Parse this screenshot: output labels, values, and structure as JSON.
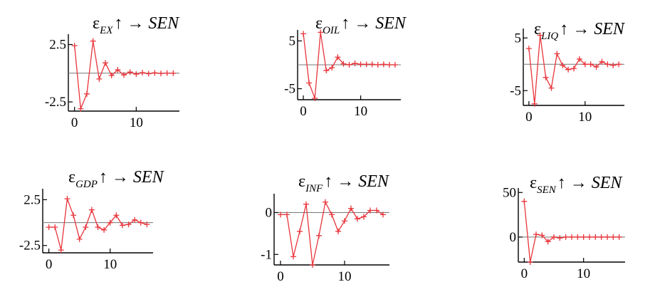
{
  "chart_data": [
    {
      "type": "line",
      "title": {
        "sub": "EX",
        "tail": "SEN"
      },
      "x": [
        0,
        1,
        2,
        3,
        4,
        5,
        6,
        7,
        8,
        9,
        10,
        11,
        12,
        13,
        14,
        15,
        16
      ],
      "y": [
        2.4,
        -3.1,
        -1.8,
        2.8,
        -0.5,
        0.9,
        -0.2,
        0.3,
        -0.15,
        0.1,
        -0.08,
        0.05,
        -0.04,
        0.03,
        -0.02,
        0.01,
        0.0
      ],
      "xlim": [
        -1,
        17
      ],
      "ylim": [
        -3.3,
        3.4
      ],
      "xticks": [
        0,
        10
      ],
      "xtick_labels": [
        "0",
        "10"
      ],
      "yticks": [
        2.5,
        -2.5
      ],
      "ytick_labels": [
        "2.5",
        "-2.5"
      ]
    },
    {
      "type": "line",
      "title": {
        "sub": "OIL",
        "tail": "SEN"
      },
      "x": [
        0,
        1,
        2,
        3,
        4,
        5,
        6,
        7,
        8,
        9,
        10,
        11,
        12,
        13,
        14,
        15,
        16
      ],
      "y": [
        6.5,
        -3.8,
        -7.0,
        6.8,
        -1.2,
        -0.6,
        1.6,
        0.2,
        0.0,
        0.3,
        0.1,
        0.1,
        0.1,
        0.0,
        0.1,
        0.0,
        0.0
      ],
      "xlim": [
        -1,
        17
      ],
      "ylim": [
        -7.3,
        7.3
      ],
      "xticks": [
        0,
        10
      ],
      "xtick_labels": [
        "0",
        "10"
      ],
      "yticks": [
        5,
        -5
      ],
      "ytick_labels": [
        "5",
        "-5"
      ]
    },
    {
      "type": "line",
      "title": {
        "sub": "LIQ",
        "tail": "SEN"
      },
      "x": [
        0,
        1,
        2,
        3,
        4,
        5,
        6,
        7,
        8,
        9,
        10,
        11,
        12,
        13,
        14,
        15,
        16
      ],
      "y": [
        3.0,
        -7.5,
        5.5,
        -2.5,
        -4.5,
        2.0,
        -0.2,
        -1.0,
        -0.8,
        1.0,
        0.0,
        0.0,
        -0.5,
        0.5,
        0.0,
        -0.2,
        0.0
      ],
      "xlim": [
        -1,
        17
      ],
      "ylim": [
        -7.8,
        6.8
      ],
      "xticks": [
        0,
        10
      ],
      "xtick_labels": [
        "0",
        "10"
      ],
      "yticks": [
        5,
        -5
      ],
      "ytick_labels": [
        "5",
        "-5"
      ]
    },
    {
      "type": "line",
      "title": {
        "sub": "GDP",
        "tail": "SEN"
      },
      "x": [
        0,
        1,
        2,
        3,
        4,
        5,
        6,
        7,
        8,
        9,
        10,
        11,
        12,
        13,
        14,
        15,
        16
      ],
      "y": [
        -0.5,
        -0.5,
        -3.0,
        2.6,
        0.8,
        -1.8,
        -0.5,
        1.4,
        -0.5,
        -0.8,
        0.0,
        0.8,
        -0.3,
        -0.2,
        0.3,
        0.0,
        -0.2
      ],
      "xlim": [
        -1,
        17
      ],
      "ylim": [
        -3.3,
        3.7
      ],
      "xticks": [
        0,
        10
      ],
      "xtick_labels": [
        "0",
        "10"
      ],
      "yticks": [
        2.5,
        -2.5
      ],
      "ytick_labels": [
        "2.5",
        "-2.5"
      ]
    },
    {
      "type": "line",
      "title": {
        "sub": "INF",
        "tail": "SEN"
      },
      "x": [
        0,
        1,
        2,
        3,
        4,
        5,
        6,
        7,
        8,
        9,
        10,
        11,
        12,
        13,
        14,
        15,
        16
      ],
      "y": [
        -0.05,
        -0.05,
        -1.05,
        -0.45,
        0.2,
        -1.25,
        -0.55,
        0.25,
        -0.05,
        -0.45,
        -0.2,
        0.1,
        -0.15,
        -0.1,
        0.05,
        0.05,
        -0.05
      ],
      "xlim": [
        -1,
        17
      ],
      "ylim": [
        -1.25,
        0.45
      ],
      "xticks": [
        0,
        10
      ],
      "xtick_labels": [
        "0",
        "10"
      ],
      "yticks": [
        0,
        -1
      ],
      "ytick_labels": [
        "0",
        "-1"
      ]
    },
    {
      "type": "line",
      "title": {
        "sub": "SEN",
        "tail": "SEN"
      },
      "x": [
        0,
        1,
        2,
        3,
        4,
        5,
        6,
        7,
        8,
        9,
        10,
        11,
        12,
        13,
        14,
        15,
        16
      ],
      "y": [
        40,
        -28,
        3,
        2,
        -5,
        0,
        -1,
        0,
        0,
        0,
        0,
        0,
        0,
        0,
        0,
        0,
        0
      ],
      "xlim": [
        -1,
        17
      ],
      "ylim": [
        -28,
        55
      ],
      "xticks": [
        0,
        10
      ],
      "xtick_labels": [
        "0",
        "10"
      ],
      "yticks": [
        50,
        0
      ],
      "ytick_labels": [
        "50",
        "0"
      ]
    }
  ],
  "colors": {
    "series": "#e8353b",
    "axis": "#000000",
    "zero_line": "#777777"
  },
  "title_glyphs": {
    "epsilon": "ε",
    "arrow": "↑ →"
  }
}
